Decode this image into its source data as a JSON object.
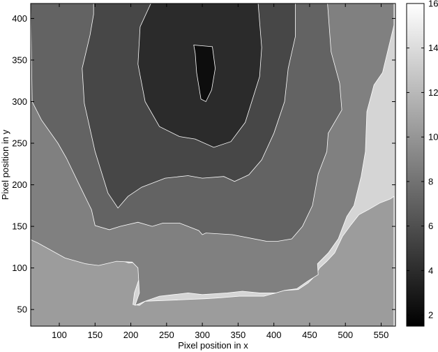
{
  "chart_data": {
    "type": "contour",
    "title": "",
    "xlabel": "Pixel position in x",
    "ylabel": "Pixel position in y",
    "xlim": [
      60,
      570
    ],
    "ylim": [
      30,
      418
    ],
    "x_ticks": [
      100,
      150,
      200,
      250,
      300,
      350,
      400,
      450,
      500,
      550
    ],
    "y_ticks": [
      50,
      100,
      150,
      200,
      250,
      300,
      350,
      400
    ],
    "colorbar": {
      "range": [
        1.5,
        16
      ],
      "ticks": [
        2,
        4,
        6,
        8,
        10,
        12,
        14,
        16
      ],
      "colormap": "gray"
    },
    "grid": false,
    "legend": "none",
    "levels": [
      {
        "level": 2,
        "color": "#0d0d0d",
        "polygon": [
          [
            288,
            368
          ],
          [
            314,
            366
          ],
          [
            318,
            340
          ],
          [
            313,
            314
          ],
          [
            305,
            300
          ],
          [
            298,
            303
          ],
          [
            292,
            335
          ],
          [
            290,
            358
          ]
        ]
      },
      {
        "level": 4,
        "color": "#2b2b2b",
        "polygon": [
          [
            228,
            418
          ],
          [
            378,
            418
          ],
          [
            383,
            365
          ],
          [
            380,
            330
          ],
          [
            360,
            275
          ],
          [
            340,
            252
          ],
          [
            316,
            245
          ],
          [
            290,
            255
          ],
          [
            268,
            258
          ],
          [
            240,
            270
          ],
          [
            220,
            300
          ],
          [
            210,
            345
          ],
          [
            213,
            390
          ]
        ]
      },
      {
        "level": 6,
        "color": "#474747",
        "polygon": [
          [
            148,
            418
          ],
          [
            430,
            418
          ],
          [
            430,
            378
          ],
          [
            420,
            340
          ],
          [
            415,
            300
          ],
          [
            400,
            262
          ],
          [
            383,
            230
          ],
          [
            365,
            212
          ],
          [
            345,
            204
          ],
          [
            330,
            210
          ],
          [
            300,
            208
          ],
          [
            280,
            211
          ],
          [
            248,
            208
          ],
          [
            215,
            197
          ],
          [
            196,
            186
          ],
          [
            182,
            172
          ],
          [
            168,
            190
          ],
          [
            150,
            240
          ],
          [
            135,
            298
          ],
          [
            132,
            340
          ],
          [
            143,
            380
          ],
          [
            148,
            405
          ]
        ]
      },
      {
        "level": 8,
        "color": "#636363",
        "polygon": [
          [
            88,
            418
          ],
          [
            475,
            418
          ],
          [
            480,
            360
          ],
          [
            492,
            322
          ],
          [
            495,
            290
          ],
          [
            476,
            262
          ],
          [
            474,
            240
          ],
          [
            462,
            213
          ],
          [
            454,
            175
          ],
          [
            440,
            150
          ],
          [
            425,
            135
          ],
          [
            405,
            132
          ],
          [
            390,
            132
          ],
          [
            342,
            140
          ],
          [
            305,
            142
          ],
          [
            300,
            140
          ],
          [
            295,
            145
          ],
          [
            268,
            154
          ],
          [
            245,
            154
          ],
          [
            230,
            150
          ],
          [
            210,
            155
          ],
          [
            185,
            150
          ],
          [
            170,
            146
          ],
          [
            150,
            151
          ],
          [
            145,
            170
          ],
          [
            128,
            200
          ],
          [
            110,
            232
          ],
          [
            98,
            250
          ],
          [
            75,
            278
          ],
          [
            62,
            300
          ],
          [
            60,
            418
          ]
        ]
      },
      {
        "level": 10,
        "color": "#808080",
        "polygon": [
          [
            60,
            418
          ],
          [
            568,
            418
          ],
          [
            568,
            392
          ],
          [
            552,
            335
          ],
          [
            540,
            320
          ],
          [
            530,
            288
          ],
          [
            528,
            240
          ],
          [
            522,
            210
          ],
          [
            512,
            175
          ],
          [
            502,
            162
          ],
          [
            490,
            135
          ],
          [
            476,
            118
          ],
          [
            461,
            105
          ],
          [
            462,
            92
          ],
          [
            447,
            84
          ],
          [
            432,
            75
          ],
          [
            415,
            73
          ],
          [
            403,
            70
          ],
          [
            380,
            70
          ],
          [
            356,
            72
          ],
          [
            335,
            70
          ],
          [
            300,
            68
          ],
          [
            280,
            70
          ],
          [
            260,
            68
          ],
          [
            240,
            66
          ],
          [
            220,
            60
          ],
          [
            206,
            55
          ],
          [
            212,
            70
          ],
          [
            210,
            100
          ],
          [
            202,
            107
          ],
          [
            180,
            108
          ],
          [
            155,
            103
          ],
          [
            137,
            105
          ],
          [
            108,
            112
          ],
          [
            70,
            130
          ],
          [
            60,
            134
          ]
        ]
      },
      {
        "level": 12,
        "color": "#9c9c9c",
        "polygon": [
          [
            60,
            165
          ],
          [
            82,
            155
          ],
          [
            106,
            140
          ],
          [
            130,
            136
          ],
          [
            145,
            123
          ],
          [
            155,
            112
          ],
          [
            176,
            112
          ],
          [
            197,
            106
          ],
          [
            209,
            107
          ],
          [
            212,
            99
          ],
          [
            212,
            88
          ],
          [
            205,
            70
          ],
          [
            203,
            56
          ],
          [
            212,
            55
          ],
          [
            220,
            60
          ],
          [
            250,
            61
          ],
          [
            278,
            62
          ],
          [
            304,
            63
          ],
          [
            324,
            64
          ],
          [
            352,
            66
          ],
          [
            386,
            66
          ],
          [
            403,
            70
          ],
          [
            415,
            73
          ],
          [
            434,
            74
          ],
          [
            448,
            82
          ],
          [
            457,
            90
          ],
          [
            464,
            100
          ],
          [
            474,
            108
          ],
          [
            485,
            118
          ],
          [
            496,
            138
          ],
          [
            508,
            152
          ],
          [
            519,
            164
          ],
          [
            532,
            170
          ],
          [
            548,
            178
          ],
          [
            563,
            183
          ],
          [
            568,
            186
          ],
          [
            568,
            30
          ],
          [
            60,
            30
          ]
        ]
      },
      {
        "level": 14,
        "color": "#b9b9b9",
        "polygon": [
          [
            60,
            112
          ],
          [
            82,
            108
          ],
          [
            102,
            103
          ],
          [
            120,
            99
          ],
          [
            140,
            94
          ],
          [
            150,
            92
          ],
          [
            151,
            82
          ],
          [
            148,
            72
          ],
          [
            138,
            60
          ],
          [
            133,
            40
          ],
          [
            130,
            30
          ],
          [
            398,
            30
          ],
          [
            400,
            42
          ],
          [
            405,
            56
          ],
          [
            415,
            63
          ],
          [
            432,
            62
          ],
          [
            450,
            60
          ],
          [
            466,
            58
          ],
          [
            484,
            58
          ],
          [
            496,
            66
          ],
          [
            509,
            74
          ],
          [
            520,
            80
          ],
          [
            530,
            90
          ],
          [
            542,
            96
          ],
          [
            556,
            106
          ],
          [
            568,
            112
          ],
          [
            568,
            30
          ],
          [
            60,
            30
          ]
        ]
      },
      {
        "level": 16,
        "color": "#d5d5d5",
        "polygon": [
          [
            60,
            80
          ],
          [
            70,
            76
          ],
          [
            80,
            72
          ],
          [
            92,
            62
          ],
          [
            100,
            52
          ],
          [
            104,
            40
          ],
          [
            102,
            30
          ],
          [
            60,
            30
          ]
        ]
      },
      {
        "level": 16,
        "color": "#d5d5d5",
        "polygon": [
          [
            519,
            30
          ],
          [
            568,
            30
          ],
          [
            568,
            84
          ],
          [
            556,
            72
          ],
          [
            540,
            54
          ],
          [
            530,
            44
          ],
          [
            521,
            36
          ]
        ]
      }
    ]
  }
}
